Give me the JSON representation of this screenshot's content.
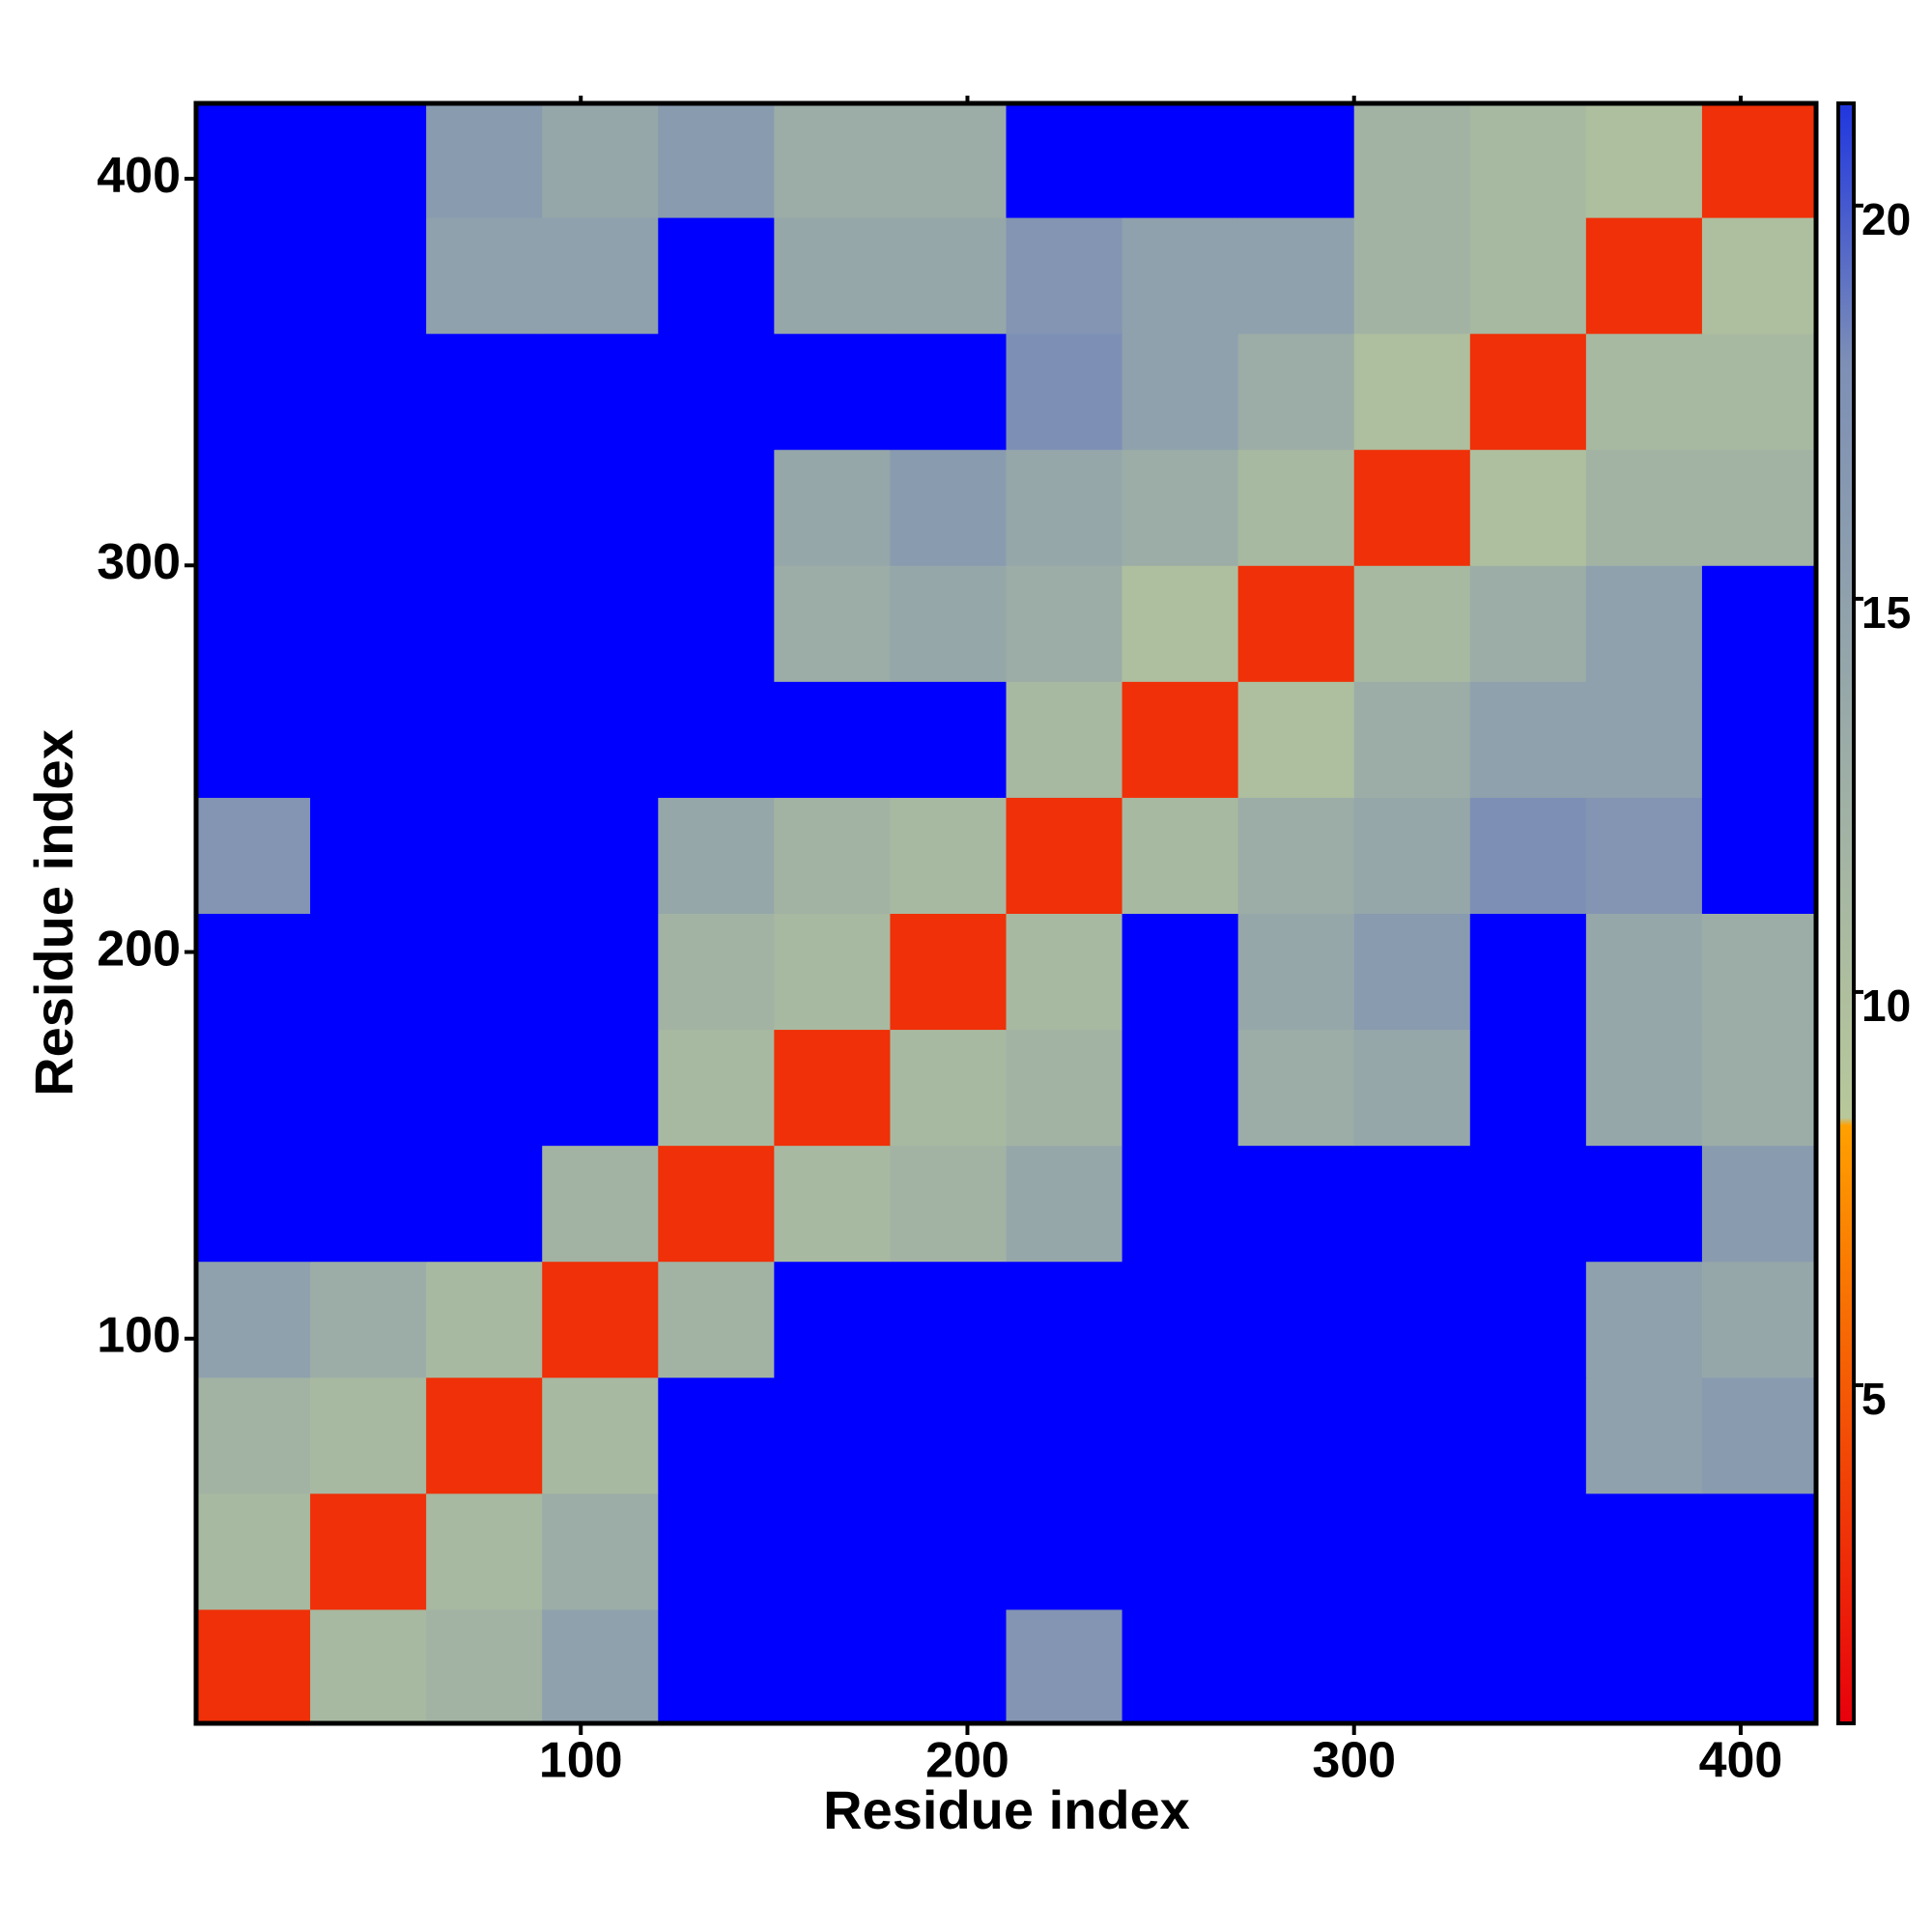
{
  "chart_data": {
    "type": "heatmap",
    "xlabel": "Residue index",
    "ylabel": "Residue index",
    "xlim": [
      0.5,
      419.5
    ],
    "ylim": [
      0.5,
      419.5
    ],
    "xticks": [
      100,
      200,
      300,
      400
    ],
    "yticks": [
      100,
      200,
      300,
      400
    ],
    "xbins": [
      0,
      30,
      60,
      90,
      120,
      150,
      180,
      210,
      240,
      270,
      300,
      330,
      360,
      390,
      420
    ],
    "ybins": [
      0,
      30,
      60,
      90,
      120,
      150,
      180,
      210,
      240,
      270,
      300,
      330,
      360,
      390,
      420
    ],
    "z": [
      [
        3,
        11,
        12,
        15,
        22,
        22,
        22,
        17,
        22,
        22,
        22,
        22,
        22,
        22
      ],
      [
        11,
        3,
        11,
        13,
        22,
        22,
        22,
        22,
        22,
        22,
        22,
        22,
        22,
        22
      ],
      [
        12,
        11,
        3,
        11,
        22,
        22,
        22,
        22,
        22,
        22,
        22,
        22,
        15,
        16
      ],
      [
        15,
        13,
        11,
        3,
        12,
        22,
        22,
        22,
        22,
        22,
        22,
        22,
        15,
        14
      ],
      [
        22,
        22,
        22,
        12,
        3,
        11,
        12,
        14,
        22,
        22,
        22,
        22,
        22,
        16
      ],
      [
        22,
        22,
        22,
        22,
        11,
        3,
        11,
        12,
        22,
        13,
        14,
        22,
        14,
        13
      ],
      [
        22,
        22,
        22,
        22,
        12,
        11,
        3,
        11,
        22,
        14,
        16,
        22,
        14,
        13
      ],
      [
        17,
        22,
        22,
        22,
        14,
        12,
        11,
        3,
        11,
        13,
        14,
        18,
        17,
        22
      ],
      [
        22,
        22,
        22,
        22,
        22,
        22,
        22,
        11,
        3,
        10,
        13,
        15,
        15,
        22
      ],
      [
        22,
        22,
        22,
        22,
        22,
        13,
        14,
        13,
        10,
        3,
        11,
        13,
        15,
        22
      ],
      [
        22,
        22,
        22,
        22,
        22,
        14,
        16,
        14,
        13,
        11,
        3,
        10,
        12,
        12
      ],
      [
        22,
        22,
        22,
        22,
        22,
        22,
        22,
        18,
        15,
        13,
        10,
        3,
        11,
        11
      ],
      [
        22,
        22,
        15,
        15,
        22,
        14,
        14,
        17,
        15,
        15,
        12,
        11,
        3,
        10
      ],
      [
        22,
        22,
        16,
        14,
        16,
        13,
        13,
        22,
        22,
        22,
        12,
        11,
        10,
        3
      ]
    ],
    "colorbar": {
      "lim": [
        0.7,
        21.3
      ],
      "ticks": [
        5,
        10,
        15,
        20
      ]
    },
    "colorscale": [
      {
        "value": 0.7,
        "color": "#e8000b"
      },
      {
        "value": 8.3,
        "color": "#ffa000"
      },
      {
        "value": 8.4,
        "color": "#b8c89a"
      },
      {
        "value": 18,
        "color": "#7d8fb5"
      },
      {
        "value": 21.3,
        "color": "#2036e0"
      }
    ],
    "over_color": "#0000ff"
  }
}
